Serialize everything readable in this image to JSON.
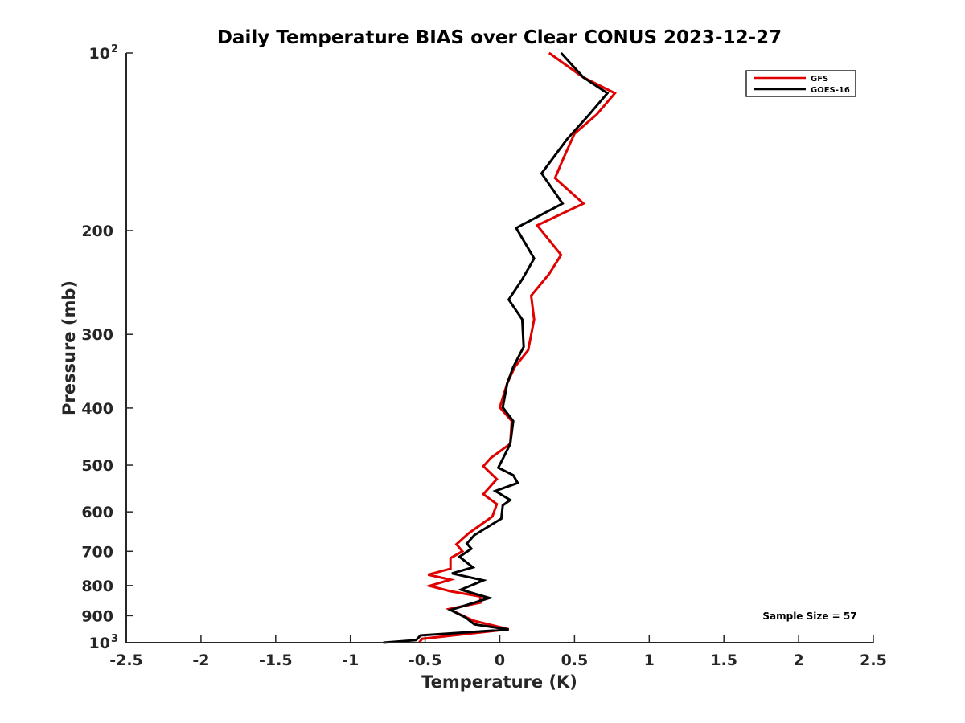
{
  "chart_data": {
    "type": "line",
    "title": "Daily Temperature BIAS over Clear CONUS 2023-12-27",
    "xlabel": "Temperature (K)",
    "ylabel": "Pressure (mb)",
    "xlim": [
      -2.5,
      2.5
    ],
    "ylim": [
      100,
      1000
    ],
    "y_scale": "log",
    "y_reversed": true,
    "x_ticks": [
      {
        "value": -2.5,
        "label": "-2.5"
      },
      {
        "value": -2,
        "label": "-2"
      },
      {
        "value": -1.5,
        "label": "-1.5"
      },
      {
        "value": -1,
        "label": "-1"
      },
      {
        "value": -0.5,
        "label": "-0.5"
      },
      {
        "value": 0,
        "label": "0"
      },
      {
        "value": 0.5,
        "label": "0.5"
      },
      {
        "value": 1,
        "label": "1"
      },
      {
        "value": 1.5,
        "label": "1.5"
      },
      {
        "value": 2,
        "label": "2"
      },
      {
        "value": 2.5,
        "label": "2.5"
      }
    ],
    "y_ticks": [
      {
        "value": 100,
        "label": "10",
        "exp": "2"
      },
      {
        "value": 200,
        "label": "200"
      },
      {
        "value": 300,
        "label": "300"
      },
      {
        "value": 400,
        "label": "400"
      },
      {
        "value": 500,
        "label": "500"
      },
      {
        "value": 600,
        "label": "600"
      },
      {
        "value": 700,
        "label": "700"
      },
      {
        "value": 800,
        "label": "800"
      },
      {
        "value": 900,
        "label": "900"
      },
      {
        "value": 1000,
        "label": "10",
        "exp": "3"
      }
    ],
    "grid": false,
    "legend_position": "top-right",
    "annotation": "Sample Size = 57",
    "series": [
      {
        "name": "GFS",
        "color": "#e00000",
        "points": [
          [
            0.33,
            100
          ],
          [
            0.56,
            110
          ],
          [
            0.77,
            117
          ],
          [
            0.65,
            127
          ],
          [
            0.5,
            137
          ],
          [
            0.43,
            150
          ],
          [
            0.37,
            163
          ],
          [
            0.56,
            180
          ],
          [
            0.25,
            196
          ],
          [
            0.41,
            220
          ],
          [
            0.33,
            237
          ],
          [
            0.21,
            258
          ],
          [
            0.23,
            283
          ],
          [
            0.19,
            319
          ],
          [
            0.1,
            341
          ],
          [
            0.05,
            363
          ],
          [
            0.0,
            399
          ],
          [
            0.08,
            421
          ],
          [
            0.07,
            460
          ],
          [
            -0.06,
            486
          ],
          [
            -0.11,
            502
          ],
          [
            -0.02,
            528
          ],
          [
            -0.11,
            560
          ],
          [
            -0.02,
            582
          ],
          [
            -0.05,
            611
          ],
          [
            -0.21,
            653
          ],
          [
            -0.29,
            681
          ],
          [
            -0.25,
            700
          ],
          [
            -0.33,
            719
          ],
          [
            -0.33,
            749
          ],
          [
            -0.48,
            767
          ],
          [
            -0.33,
            782
          ],
          [
            -0.47,
            801
          ],
          [
            -0.33,
            818
          ],
          [
            -0.13,
            835
          ],
          [
            -0.13,
            855
          ],
          [
            -0.34,
            877
          ],
          [
            -0.18,
            917
          ],
          [
            0.06,
            949
          ],
          [
            -0.52,
            985
          ],
          [
            -0.54,
            1000
          ]
        ]
      },
      {
        "name": "GOES-16",
        "color": "#000000",
        "points": [
          [
            0.41,
            100
          ],
          [
            0.56,
            110
          ],
          [
            0.72,
            117
          ],
          [
            0.6,
            127
          ],
          [
            0.45,
            140
          ],
          [
            0.28,
            160
          ],
          [
            0.42,
            180
          ],
          [
            0.11,
            198
          ],
          [
            0.23,
            223
          ],
          [
            0.15,
            242
          ],
          [
            0.06,
            262
          ],
          [
            0.15,
            283
          ],
          [
            0.16,
            315
          ],
          [
            0.09,
            341
          ],
          [
            0.05,
            363
          ],
          [
            0.02,
            399
          ],
          [
            0.09,
            421
          ],
          [
            0.07,
            460
          ],
          [
            0.03,
            482
          ],
          [
            -0.01,
            505
          ],
          [
            0.09,
            520
          ],
          [
            0.12,
            536
          ],
          [
            -0.03,
            553
          ],
          [
            0.07,
            573
          ],
          [
            0.02,
            585
          ],
          [
            0.01,
            616
          ],
          [
            -0.17,
            657
          ],
          [
            -0.22,
            679
          ],
          [
            -0.19,
            693
          ],
          [
            -0.27,
            715
          ],
          [
            -0.18,
            745
          ],
          [
            -0.32,
            763
          ],
          [
            -0.11,
            784
          ],
          [
            -0.26,
            813
          ],
          [
            -0.07,
            840
          ],
          [
            -0.33,
            880
          ],
          [
            -0.23,
            906
          ],
          [
            -0.17,
            931
          ],
          [
            0.06,
            950
          ],
          [
            -0.53,
            972
          ],
          [
            -0.56,
            990
          ],
          [
            -0.78,
            1000
          ]
        ]
      }
    ]
  }
}
